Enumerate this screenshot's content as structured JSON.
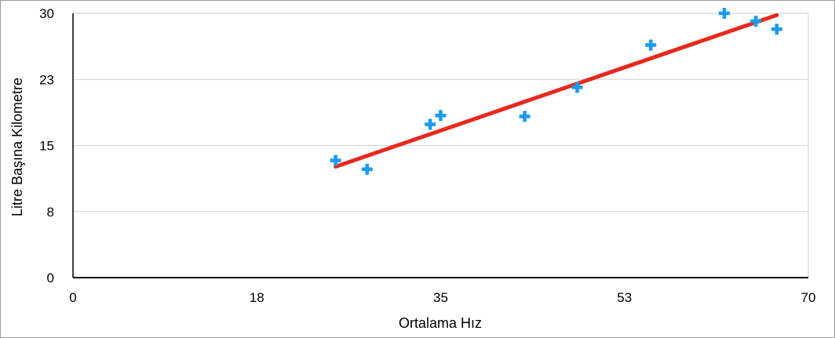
{
  "chart_data": {
    "type": "scatter",
    "title": "",
    "xlabel": "Ortalama Hız",
    "ylabel": "Litre Başına Kilometre",
    "xlim": [
      0,
      70
    ],
    "ylim": [
      0,
      30
    ],
    "x_ticks": [
      "0",
      "18",
      "35",
      "53",
      "70"
    ],
    "y_ticks": [
      "0",
      "8",
      "15",
      "23",
      "30"
    ],
    "grid": "horizontal",
    "series": [
      {
        "marker": "plus",
        "color": "#1a9bf0",
        "points": [
          {
            "x": 25,
            "y": 13.3
          },
          {
            "x": 28,
            "y": 12.3
          },
          {
            "x": 34,
            "y": 17.4
          },
          {
            "x": 35,
            "y": 18.4
          },
          {
            "x": 43,
            "y": 18.3
          },
          {
            "x": 48,
            "y": 21.6
          },
          {
            "x": 55,
            "y": 26.4
          },
          {
            "x": 62,
            "y": 30.0
          },
          {
            "x": 65,
            "y": 29.1
          },
          {
            "x": 67,
            "y": 28.2
          }
        ]
      }
    ],
    "trendline": {
      "type": "linear",
      "color": "#e8281e",
      "from": {
        "x": 25,
        "y": 12.6
      },
      "to": {
        "x": 67,
        "y": 29.8
      }
    }
  }
}
